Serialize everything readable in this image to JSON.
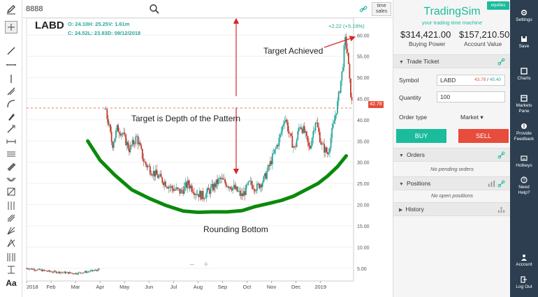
{
  "search": {
    "value": "8888"
  },
  "topbar": {
    "time_sales_line1": "time",
    "time_sales_line2": "sales"
  },
  "chart": {
    "symbol": "LABD",
    "ohlc_line1": "O: 24.10H: 25.25V: 1.61m",
    "ohlc_line2": "C: 24.52L: 23.83D: 09/12/2018",
    "change": "+2.22 (+5.19%)",
    "current_price": "42.78",
    "annotations": {
      "target_achieved": "Target Achieved",
      "target_depth": "Target is Depth of the Pattern",
      "rounding_bottom": "Rounding Bottom"
    },
    "zoom_out": "−",
    "zoom_in": "+"
  },
  "chart_data": {
    "type": "candlestick",
    "title": "",
    "y_ticks": [
      "60.00",
      "55.00",
      "50.00",
      "45.00",
      "40.00",
      "35.00",
      "30.00",
      "25.00",
      "20.00",
      "15.00",
      "10.00",
      "5.00"
    ],
    "x_ticks": [
      "2018",
      "Feb",
      "Mar",
      "Apr",
      "May",
      "Jun",
      "Jul",
      "Aug",
      "Sep",
      "Oct",
      "Nov",
      "Dec",
      "2019"
    ],
    "ylim": [
      2,
      64
    ],
    "current_price": 42.78,
    "close_path": [
      [
        3.2,
        42.5
      ],
      [
        3.35,
        39
      ],
      [
        3.5,
        34
      ],
      [
        3.7,
        38
      ],
      [
        3.9,
        37
      ],
      [
        4.2,
        33
      ],
      [
        4.5,
        36
      ],
      [
        4.8,
        30
      ],
      [
        5.1,
        28
      ],
      [
        5.5,
        26
      ],
      [
        5.9,
        24
      ],
      [
        6.3,
        23
      ],
      [
        6.6,
        25
      ],
      [
        6.9,
        23
      ],
      [
        7.2,
        22
      ],
      [
        7.6,
        24
      ],
      [
        7.9,
        26
      ],
      [
        8.15,
        25
      ],
      [
        8.45,
        24
      ],
      [
        8.8,
        22
      ],
      [
        9.1,
        25
      ],
      [
        9.4,
        24
      ],
      [
        9.7,
        26
      ],
      [
        9.9,
        29
      ],
      [
        10.1,
        32
      ],
      [
        10.35,
        36
      ],
      [
        10.55,
        41
      ],
      [
        10.75,
        36
      ],
      [
        10.95,
        33
      ],
      [
        11.15,
        39
      ],
      [
        11.35,
        37
      ],
      [
        11.55,
        33
      ],
      [
        11.8,
        40
      ],
      [
        12.05,
        34
      ],
      [
        12.3,
        32
      ],
      [
        12.5,
        38
      ],
      [
        12.7,
        44
      ],
      [
        12.9,
        52
      ],
      [
        13.0,
        59
      ],
      [
        13.1,
        56
      ],
      [
        13.2,
        48
      ],
      [
        13.3,
        43
      ]
    ],
    "early_path": [
      [
        0,
        5.0
      ],
      [
        0.5,
        4.6
      ],
      [
        1.0,
        4.2
      ],
      [
        1.5,
        4.0
      ],
      [
        2.0,
        3.8
      ],
      [
        2.5,
        4.2
      ],
      [
        3.0,
        4.7
      ]
    ],
    "rounding_bottom_curve": [
      [
        2.5,
        35
      ],
      [
        3.0,
        30.5
      ],
      [
        3.6,
        27
      ],
      [
        4.3,
        23.5
      ],
      [
        5.0,
        21.5
      ],
      [
        5.7,
        19.8
      ],
      [
        6.4,
        18.5
      ],
      [
        7.0,
        18.2
      ],
      [
        7.6,
        18.3
      ],
      [
        8.2,
        18.3
      ],
      [
        8.8,
        18.6
      ],
      [
        9.3,
        19.5
      ],
      [
        9.9,
        20.3
      ],
      [
        10.4,
        21.0
      ],
      [
        10.9,
        22.0
      ],
      [
        11.4,
        23.5
      ],
      [
        11.9,
        25.0
      ],
      [
        12.3,
        26.8
      ],
      [
        12.7,
        29.0
      ],
      [
        13.05,
        31.5
      ]
    ],
    "red_dashed_level": 42.78
  },
  "sidebar": {
    "equities_badge": "equities",
    "brand": "TradingSim",
    "tagline": "your trading time machine",
    "buying_power_value": "$314,421.00",
    "buying_power_label": "Buying Power",
    "account_value_value": "$157,210.50",
    "account_value_label": "Account Value",
    "trade_ticket_label": "Trade Ticket",
    "symbol_label": "Symbol",
    "symbol_value": "LABD",
    "bid": "43.78",
    "ask": "45.40",
    "quantity_label": "Quantity",
    "quantity_value": "100",
    "order_type_label": "Order type",
    "order_type_value": "Market ▾",
    "buy_label": "BUY",
    "sell_label": "SELL",
    "orders_label": "Orders",
    "no_orders": "No pending orders",
    "positions_label": "Positions",
    "no_positions": "No open positions",
    "history_label": "History"
  },
  "nav": {
    "settings": "Settings",
    "save": "Save",
    "charts": "Charts",
    "markets_pane_1": "Markets",
    "markets_pane_2": "Pane",
    "provide_1": "Provide",
    "provide_2": "Feedback",
    "hotkeys": "Hotkeys",
    "help_1": "Need",
    "help_2": "Help?",
    "account": "Account",
    "logout": "Log Out"
  },
  "colors": {
    "accent": "#1abc9c",
    "sell": "#e74c3c",
    "nav_bg": "#2c3e50",
    "up_candle": "#26a69a",
    "down_candle": "#c0392b",
    "rounding_curve": "#0a8a0a"
  }
}
